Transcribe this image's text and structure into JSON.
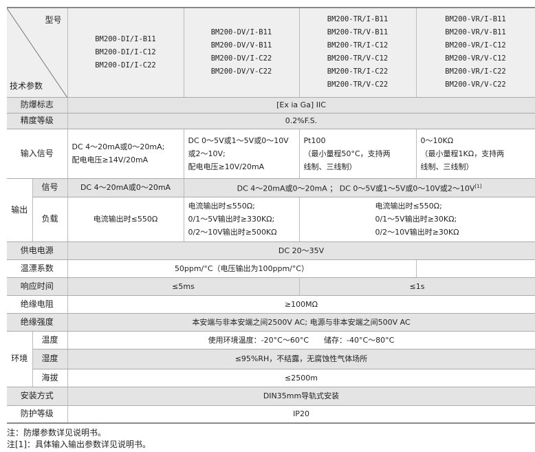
{
  "header": {
    "model_label": "型号",
    "param_label": "技术参数",
    "models": [
      [
        "BM200-DI/I-B11",
        "BM200-DI/I-C12",
        "BM200-DI/I-C22"
      ],
      [
        "BM200-DV/I-B11",
        "BM200-DV/V-B11",
        "BM200-DV/I-C22",
        "BM200-DV/V-C22"
      ],
      [
        "BM200-TR/I-B11",
        "BM200-TR/V-B11",
        "BM200-TR/I-C12",
        "BM200-TR/V-C12",
        "BM200-TR/I-C22",
        "BM200-TR/V-C22"
      ],
      [
        "BM200-VR/I-B11",
        "BM200-VR/V-B11",
        "BM200-VR/I-C12",
        "BM200-VR/V-C12",
        "BM200-VR/I-C22",
        "BM200-VR/V-C22"
      ]
    ]
  },
  "rows": {
    "explosion": {
      "label": "防爆标志",
      "value": "[Ex ia Ga] IIC"
    },
    "accuracy": {
      "label": "精度等级",
      "value": "0.2%F.S."
    },
    "input": {
      "label": "输入信号",
      "values": [
        [
          "DC 4～20mA或0～20mA;",
          "配电电压≥14V/20mA"
        ],
        [
          "DC 0～5V或1～5V或0～10V",
          "或2～10V;",
          "配电电压≥10V/20mA"
        ],
        [
          "Pt100",
          "（最小量程50°C，支持两",
          "线制、三线制）"
        ],
        [
          "0～10KΩ",
          "（最小量程1KΩ，支持两",
          "线制、三线制）"
        ]
      ]
    },
    "output": {
      "label": "输出",
      "signal_label": "信号",
      "signal_values": [
        "DC 4～20mA或0～20mA",
        "DC 4～20mA或0～20mA ； DC 0～5V或1～5V或0～10V或2～10V"
      ],
      "signal_note": "[1]",
      "load_label": "负载",
      "load_values": [
        [
          "电流输出时≤550Ω"
        ],
        [
          "电流输出时≤550Ω;",
          "0/1～5V输出时≥330KΩ;",
          "0/2～10V输出时≥500KΩ"
        ],
        [
          "电流输出时≤550Ω;",
          "0/1～5V输出时≥30KΩ;",
          "0/2～10V输出时≥30KΩ"
        ]
      ]
    },
    "power": {
      "label": "供电电源",
      "value": "DC 20～35V"
    },
    "drift": {
      "label": "温漂系数",
      "value": "50ppm/°C（电压输出为100ppm/°C）",
      "value2": ""
    },
    "response": {
      "label": "响应时间",
      "values": [
        "≤5ms",
        "≤1s"
      ]
    },
    "insulation_res": {
      "label": "绝缘电阻",
      "value": "≥100MΩ"
    },
    "insulation_str": {
      "label": "绝缘强度",
      "value": "本安端与非本安端之间2500V AC; 电源与非本安端之间500V AC"
    },
    "env": {
      "label": "环境",
      "temp_label": "温度",
      "temp": "使用环境温度：-20°C～60°C　　储存：-40°C～80°C",
      "humid_label": "湿度",
      "humid": "≤95%RH，不结露，无腐蚀性气体场所",
      "alt_label": "海拔",
      "alt": "≤2500m"
    },
    "mount": {
      "label": "安装方式",
      "value": "DIN35mm导轨式安装"
    },
    "ip": {
      "label": "防护等级",
      "value": "IP20"
    }
  },
  "notes": [
    "注：防爆参数详见说明书。",
    "注[1]：具体输入输出参数详见说明书。"
  ]
}
